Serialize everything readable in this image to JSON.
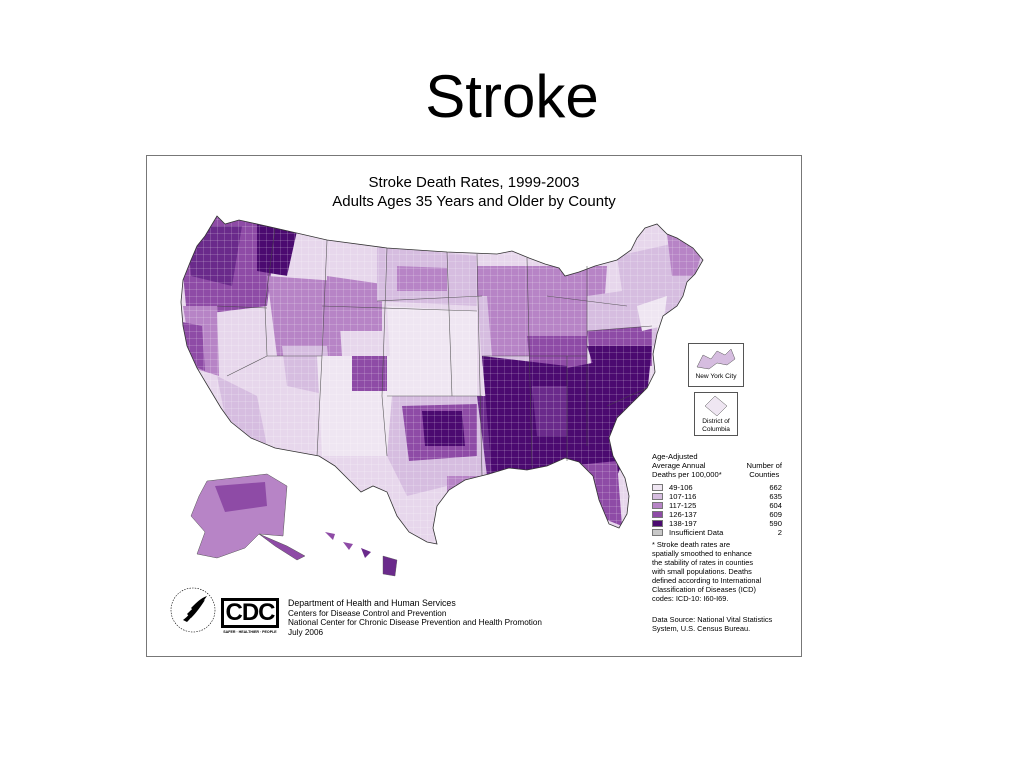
{
  "slide": {
    "title": "Stroke"
  },
  "map": {
    "title_line1": "Stroke Death Rates, 1999-2003",
    "title_line2": "Adults Ages 35 Years and Older by County",
    "insets": {
      "nyc": "New York City",
      "dc_line1": "District of",
      "dc_line2": "Columbia"
    }
  },
  "legend": {
    "heading_line1": "Age-Adjusted",
    "heading_line2": "Average Annual",
    "heading_line3": "Deaths per 100,000*",
    "count_heading_line1": "Number of",
    "count_heading_line2": "Counties",
    "classes": [
      {
        "range": "49-106",
        "count": "662",
        "color": "#efe6f2"
      },
      {
        "range": "107-116",
        "count": "635",
        "color": "#d6bde0"
      },
      {
        "range": "117-125",
        "count": "604",
        "color": "#b784c6"
      },
      {
        "range": "126-137",
        "count": "609",
        "color": "#8e4ba6"
      },
      {
        "range": "138-197",
        "count": "590",
        "color": "#4b0a70"
      },
      {
        "range": "Insufficient Data",
        "count": "2",
        "color": "#c8c8c8"
      }
    ]
  },
  "footnote": "* Stroke death rates are\nspatially smoothed to enhance\nthe stability of rates in counties\nwith small populations. Deaths\ndefined according to International\nClassification of Diseases (ICD)\ncodes: ICD-10: I60-I69.",
  "source": "Data Source: National Vital Statistics\nSystem, U.S. Census Bureau.",
  "credits": {
    "line1": "Department of Health and Human Services",
    "line2": "Centers for Disease Control and Prevention",
    "line3": "National Center for Chronic Disease Prevention and Health Promotion",
    "line4": "July 2006"
  },
  "logos": {
    "cdc": "CDC",
    "cdc_tagline": "SAFER · HEALTHIER · PEOPLE",
    "hhs_seal_text": "DEPARTMENT OF HEALTH & HUMAN SERVICES · USA"
  },
  "colors": {
    "darkest": "#4b0a70",
    "dark": "#8e4ba6",
    "mid": "#b784c6",
    "light": "#d6bde0",
    "lightest": "#efe6f2",
    "nodata": "#c8c8c8"
  }
}
